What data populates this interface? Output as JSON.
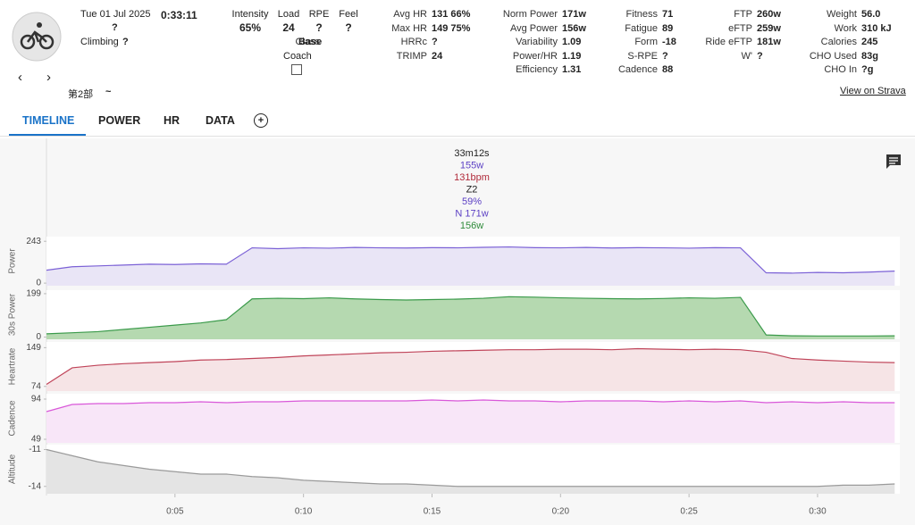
{
  "header": {
    "date": "Tue 01 Jul 2025",
    "duration": "0:33:11",
    "name": "?",
    "climbing_label": "Climbing",
    "climbing_value": "?",
    "note": "第2部",
    "note_value": "~",
    "strava": "View on Strava",
    "ratings": [
      {
        "label": "Intensity",
        "value": "65%"
      },
      {
        "label": "Load",
        "value": "24"
      },
      {
        "label": "RPE",
        "value": "?"
      },
      {
        "label": "Feel",
        "value": "?"
      }
    ],
    "class_label": "Class",
    "class_value": "Base",
    "coach": "Coach",
    "columns": [
      [
        {
          "label": "Avg HR",
          "value": "131 66%"
        },
        {
          "label": "Max HR",
          "value": "149 75%"
        },
        {
          "label": "HRRc",
          "value": "?"
        },
        {
          "label": "TRIMP",
          "value": "24"
        }
      ],
      [
        {
          "label": "Norm Power",
          "value": "171w"
        },
        {
          "label": "Avg Power",
          "value": "156w"
        },
        {
          "label": "Variability",
          "value": "1.09"
        },
        {
          "label": "Power/HR",
          "value": "1.19"
        },
        {
          "label": "Efficiency",
          "value": "1.31"
        }
      ],
      [
        {
          "label": "Fitness",
          "value": "71"
        },
        {
          "label": "Fatigue",
          "value": "89"
        },
        {
          "label": "Form",
          "value": "-18"
        },
        {
          "label": "S-RPE",
          "value": "?"
        },
        {
          "label": "Cadence",
          "value": "88"
        }
      ],
      [
        {
          "label": "FTP",
          "value": "260w"
        },
        {
          "label": "eFTP",
          "value": "259w"
        },
        {
          "label": "Ride eFTP",
          "value": "181w"
        },
        {
          "label": "W'",
          "value": "?"
        }
      ],
      [
        {
          "label": "Weight",
          "value": "56.0"
        },
        {
          "label": "Work",
          "value": "310 kJ"
        },
        {
          "label": "Calories",
          "value": "245"
        },
        {
          "label": "CHO Used",
          "value": "83g"
        },
        {
          "label": "CHO In",
          "value": "?g"
        }
      ]
    ]
  },
  "tabs": [
    "TIMELINE",
    "POWER",
    "HR",
    "DATA"
  ],
  "tooltip": [
    {
      "text": "33m12s",
      "color": "#222222"
    },
    {
      "text": "155w",
      "color": "#5b3fc4"
    },
    {
      "text": "131bpm",
      "color": "#b02a3a"
    },
    {
      "text": "Z2",
      "color": "#222222"
    },
    {
      "text": "59%",
      "color": "#5b3fc4"
    },
    {
      "text": "N 171w",
      "color": "#5b3fc4"
    },
    {
      "text": "156w",
      "color": "#2e8b3a"
    }
  ],
  "charts": {
    "x": [
      0,
      1,
      2,
      3,
      4,
      5,
      6,
      7,
      8,
      9,
      10,
      11,
      12,
      13,
      14,
      15,
      16,
      17,
      18,
      19,
      20,
      21,
      22,
      23,
      24,
      25,
      26,
      27,
      28,
      29,
      30,
      31,
      32,
      33
    ],
    "xlim": [
      0,
      33.2
    ],
    "xticks": [
      {
        "value": 5,
        "label": "0:05"
      },
      {
        "value": 10,
        "label": "0:10"
      },
      {
        "value": 15,
        "label": "0:15"
      },
      {
        "value": 20,
        "label": "0:20"
      },
      {
        "value": 25,
        "label": "0:25"
      },
      {
        "value": 30,
        "label": "0:30"
      }
    ],
    "panels": [
      {
        "label": "Power",
        "color": "#7b61d6",
        "fill": "#e9e5f6",
        "ylim": [
          -15,
          270
        ],
        "yticks": [
          0,
          243
        ],
        "values": [
          75,
          95,
          100,
          105,
          110,
          108,
          112,
          110,
          205,
          200,
          205,
          203,
          207,
          205,
          204,
          206,
          205,
          208,
          210,
          206,
          205,
          207,
          204,
          206,
          205,
          203,
          206,
          205,
          60,
          58,
          62,
          60,
          64,
          70
        ]
      },
      {
        "label": "30s Power",
        "color": "#3a9a4a",
        "fill": "#b5d9b0",
        "ylim": [
          -10,
          215
        ],
        "yticks": [
          0,
          199
        ],
        "values": [
          15,
          20,
          25,
          35,
          45,
          55,
          65,
          80,
          175,
          178,
          176,
          180,
          175,
          172,
          170,
          172,
          174,
          178,
          185,
          183,
          180,
          178,
          176,
          175,
          177,
          180,
          178,
          182,
          10,
          6,
          5,
          5,
          5,
          6
        ]
      },
      {
        "label": "Heartrate",
        "color": "#c0455a",
        "fill": "#f6e4e6",
        "ylim": [
          65,
          160
        ],
        "yticks": [
          74,
          149
        ],
        "values": [
          78,
          110,
          115,
          118,
          120,
          122,
          125,
          126,
          128,
          130,
          133,
          135,
          137,
          139,
          140,
          142,
          143,
          144,
          145,
          145,
          146,
          146,
          145,
          147,
          146,
          145,
          146,
          145,
          140,
          128,
          125,
          123,
          121,
          120
        ]
      },
      {
        "label": "Cadence",
        "color": "#d958d9",
        "fill": "#f8e6f8",
        "ylim": [
          45,
          100
        ],
        "yticks": [
          49,
          94
        ],
        "values": [
          80,
          88,
          89,
          89,
          90,
          90,
          91,
          90,
          91,
          91,
          92,
          92,
          92,
          92,
          92,
          93,
          92,
          93,
          92,
          92,
          91,
          92,
          92,
          92,
          91,
          92,
          91,
          92,
          90,
          91,
          90,
          91,
          90,
          90
        ]
      },
      {
        "label": "Altitude",
        "color": "#9a9a9a",
        "fill": "#e4e4e4",
        "ylim": [
          -14.6,
          -10.6
        ],
        "yticks": [
          -11,
          -14
        ],
        "values": [
          -11,
          -11.5,
          -12,
          -12.3,
          -12.6,
          -12.8,
          -13,
          -13,
          -13.2,
          -13.3,
          -13.5,
          -13.6,
          -13.7,
          -13.8,
          -13.8,
          -13.9,
          -14,
          -14,
          -14,
          -14,
          -14,
          -14,
          -14,
          -14,
          -14,
          -14,
          -14,
          -14,
          -14,
          -14,
          -14,
          -13.9,
          -13.9,
          -13.8
        ]
      }
    ]
  }
}
